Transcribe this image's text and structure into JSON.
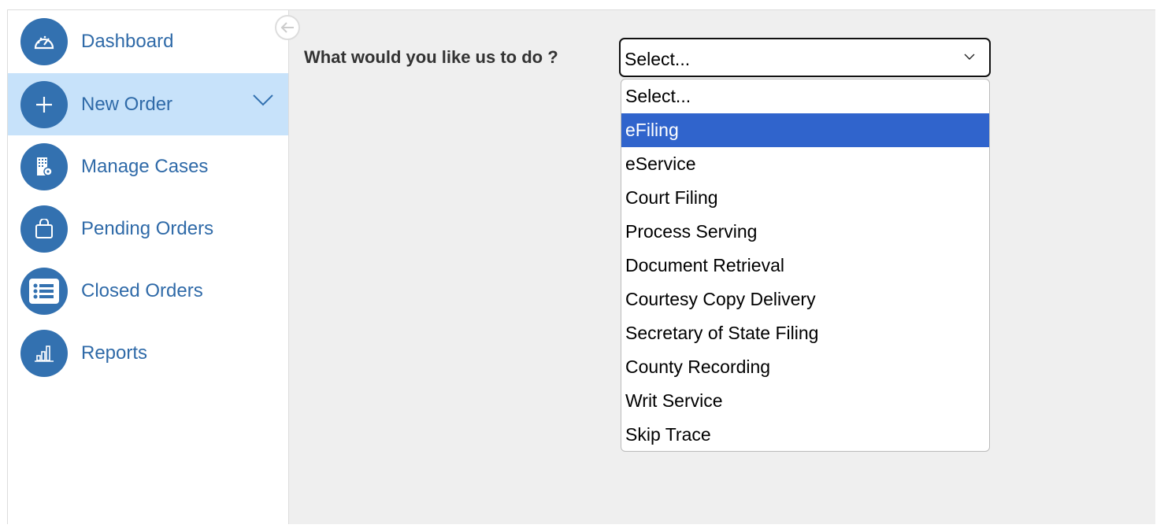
{
  "sidebar": {
    "items": [
      {
        "label": "Dashboard",
        "icon": "dashboard-icon"
      },
      {
        "label": "New Order",
        "icon": "plus-icon",
        "active": true
      },
      {
        "label": "Manage Cases",
        "icon": "building-gear-icon"
      },
      {
        "label": "Pending Orders",
        "icon": "shopping-bag-icon"
      },
      {
        "label": "Closed Orders",
        "icon": "list-icon"
      },
      {
        "label": "Reports",
        "icon": "bar-chart-icon"
      }
    ]
  },
  "main": {
    "question": "What would you like us to do ?",
    "select": {
      "value": "Select...",
      "highlighted": "eFiling",
      "options": [
        "Select...",
        "eFiling",
        "eService",
        "Court Filing",
        "Process Serving",
        "Document Retrieval",
        "Courtesy Copy Delivery",
        "Secretary of State Filing",
        "County Recording",
        "Writ Service",
        "Skip Trace"
      ]
    }
  },
  "colors": {
    "brand": "#3371b0",
    "active_bg": "#c7e2fa",
    "highlight": "#3064cc"
  }
}
